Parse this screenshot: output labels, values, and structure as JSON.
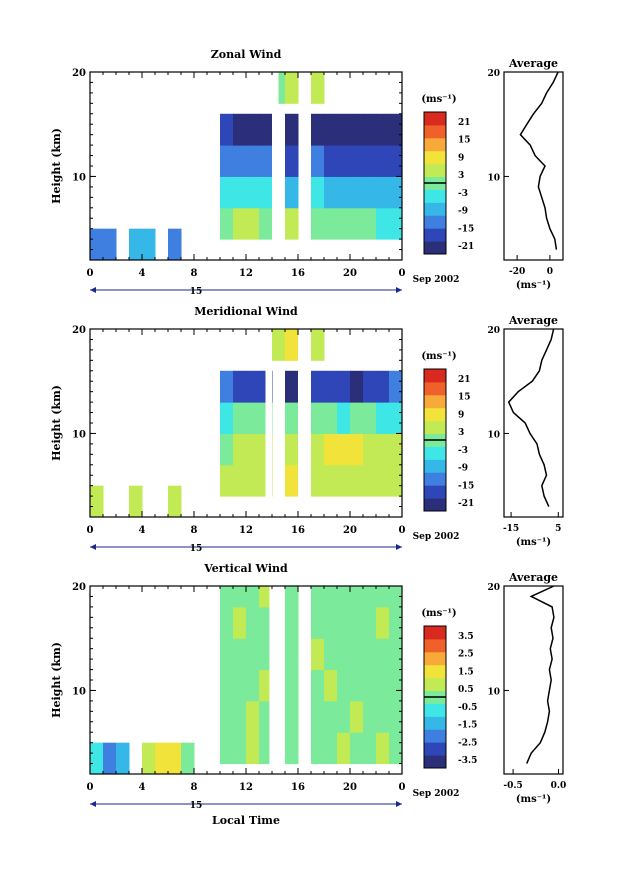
{
  "figure": {
    "date_label": "Sep 2002",
    "day_label": "15",
    "xlabel": "Local Time",
    "colorbar_unit": "(ms⁻¹)",
    "average_title": "Average",
    "average_unit": "(ms⁻¹)"
  },
  "chart_data": [
    {
      "type": "heatmap",
      "title": "Zonal Wind",
      "ylabel": "Height (km)",
      "xlabel": "",
      "x_ticks": [
        "0",
        "4",
        "8",
        "12",
        "16",
        "20",
        "0"
      ],
      "y_ticks": [
        "20",
        "10"
      ],
      "ylim": [
        2,
        20
      ],
      "xlim": [
        0,
        24
      ],
      "colorbar": {
        "ticks": [
          "21",
          "15",
          "9",
          "3",
          "-3",
          "-9",
          "-15",
          "-21"
        ],
        "range": [
          -24,
          24
        ]
      },
      "data_gaps_hours": [
        [
          14.0,
          14.5
        ],
        [
          16.5,
          17.0
        ]
      ],
      "profile": {
        "ticks": [
          "-20",
          "0"
        ],
        "xlim": [
          -28,
          8
        ],
        "height": [
          3,
          4,
          5,
          6,
          7,
          8,
          9,
          10,
          11,
          12,
          13,
          14,
          15,
          16,
          17,
          18,
          19,
          20
        ],
        "value": [
          4,
          3,
          0,
          -2,
          -3,
          -5,
          -7,
          -6,
          -3,
          -9,
          -12,
          -18,
          -14,
          -10,
          -5,
          -2,
          2,
          5
        ]
      },
      "cells": [
        [
          0,
          2,
          -12
        ],
        [
          1,
          2,
          -15
        ],
        [
          3,
          2,
          -10
        ],
        [
          4,
          2,
          -8
        ],
        [
          6,
          2,
          -14
        ],
        [
          10,
          4,
          2
        ],
        [
          11,
          4,
          3
        ],
        [
          12,
          4,
          4
        ],
        [
          13,
          4,
          2
        ],
        [
          15,
          4,
          3
        ],
        [
          17,
          4,
          1
        ],
        [
          18,
          4,
          0
        ],
        [
          19,
          4,
          -1
        ],
        [
          20,
          4,
          0
        ],
        [
          21,
          4,
          -2
        ],
        [
          22,
          4,
          -3
        ],
        [
          23,
          4,
          -4
        ],
        [
          10,
          7,
          -3
        ],
        [
          11,
          7,
          -4
        ],
        [
          12,
          7,
          -6
        ],
        [
          13,
          7,
          -5
        ],
        [
          15,
          7,
          -7
        ],
        [
          17,
          7,
          -6
        ],
        [
          18,
          7,
          -8
        ],
        [
          19,
          7,
          -9
        ],
        [
          20,
          7,
          -8
        ],
        [
          21,
          7,
          -7
        ],
        [
          22,
          7,
          -9
        ],
        [
          23,
          7,
          -10
        ],
        [
          10,
          10,
          -11
        ],
        [
          11,
          10,
          -13
        ],
        [
          12,
          10,
          -15
        ],
        [
          13,
          10,
          -14
        ],
        [
          15,
          10,
          -16
        ],
        [
          17,
          10,
          -15
        ],
        [
          18,
          10,
          -17
        ],
        [
          19,
          10,
          -18
        ],
        [
          20,
          10,
          -17
        ],
        [
          21,
          10,
          -16
        ],
        [
          22,
          10,
          -18
        ],
        [
          23,
          10,
          -19
        ],
        [
          10,
          13,
          -18
        ],
        [
          11,
          13,
          -20
        ],
        [
          12,
          13,
          -22
        ],
        [
          13,
          13,
          -21
        ],
        [
          15,
          13,
          -23
        ],
        [
          17,
          13,
          -22
        ],
        [
          18,
          13,
          -21
        ],
        [
          19,
          13,
          -23
        ],
        [
          20,
          13,
          -22
        ],
        [
          21,
          13,
          -24
        ],
        [
          22,
          13,
          -23
        ],
        [
          23,
          13,
          -20
        ],
        [
          14,
          17,
          2
        ],
        [
          15,
          17,
          4
        ],
        [
          17,
          17,
          3
        ]
      ]
    },
    {
      "type": "heatmap",
      "title": "Meridional Wind",
      "ylabel": "Height (km)",
      "xlabel": "",
      "x_ticks": [
        "0",
        "4",
        "8",
        "12",
        "16",
        "20",
        "0"
      ],
      "y_ticks": [
        "20",
        "10"
      ],
      "ylim": [
        2,
        20
      ],
      "xlim": [
        0,
        24
      ],
      "colorbar": {
        "ticks": [
          "21",
          "15",
          "9",
          "3",
          "-3",
          "-9",
          "-15",
          "-21"
        ],
        "range": [
          -24,
          24
        ]
      },
      "data_gaps_hours": [
        [
          13.5,
          14.0
        ],
        [
          16.0,
          16.5
        ]
      ],
      "profile": {
        "ticks": [
          "-15",
          "5"
        ],
        "xlim": [
          -18,
          7
        ],
        "height": [
          3,
          4,
          5,
          6,
          7,
          8,
          9,
          10,
          11,
          12,
          13,
          14,
          15,
          16,
          17,
          18,
          19,
          20
        ],
        "value": [
          1,
          -1,
          -2,
          0,
          -1,
          -3,
          -4,
          -7,
          -9,
          -14,
          -16,
          -12,
          -6,
          -3,
          -2,
          0,
          2,
          3
        ]
      },
      "cells": [
        [
          0,
          2,
          6
        ],
        [
          3,
          2,
          5
        ],
        [
          6,
          2,
          4
        ],
        [
          10,
          4,
          4
        ],
        [
          11,
          4,
          5
        ],
        [
          12,
          4,
          6
        ],
        [
          13,
          4,
          5
        ],
        [
          15,
          4,
          7
        ],
        [
          17,
          4,
          6
        ],
        [
          18,
          4,
          4
        ],
        [
          19,
          4,
          5
        ],
        [
          20,
          4,
          6
        ],
        [
          21,
          4,
          3
        ],
        [
          22,
          4,
          4
        ],
        [
          23,
          4,
          5
        ],
        [
          10,
          7,
          2
        ],
        [
          11,
          7,
          3
        ],
        [
          12,
          7,
          5
        ],
        [
          13,
          7,
          6
        ],
        [
          15,
          7,
          4
        ],
        [
          17,
          7,
          6
        ],
        [
          18,
          7,
          8
        ],
        [
          19,
          7,
          9
        ],
        [
          20,
          7,
          7
        ],
        [
          21,
          7,
          6
        ],
        [
          22,
          7,
          5
        ],
        [
          23,
          7,
          4
        ],
        [
          10,
          10,
          -3
        ],
        [
          11,
          10,
          -1
        ],
        [
          12,
          10,
          0
        ],
        [
          13,
          10,
          2
        ],
        [
          15,
          10,
          1
        ],
        [
          17,
          10,
          0
        ],
        [
          18,
          10,
          -2
        ],
        [
          19,
          10,
          -4
        ],
        [
          20,
          10,
          -2
        ],
        [
          21,
          10,
          -1
        ],
        [
          22,
          10,
          -3
        ],
        [
          23,
          10,
          -5
        ],
        [
          10,
          13,
          -14
        ],
        [
          11,
          13,
          -16
        ],
        [
          12,
          13,
          -18
        ],
        [
          13,
          13,
          -19
        ],
        [
          15,
          13,
          -20
        ],
        [
          17,
          13,
          -18
        ],
        [
          18,
          13,
          -17
        ],
        [
          19,
          13,
          -19
        ],
        [
          20,
          13,
          -20
        ],
        [
          21,
          13,
          -18
        ],
        [
          22,
          13,
          -16
        ],
        [
          23,
          13,
          -15
        ],
        [
          14,
          17,
          6
        ],
        [
          15,
          17,
          8
        ],
        [
          17,
          17,
          5
        ]
      ]
    },
    {
      "type": "heatmap",
      "title": "Vertical Wind",
      "ylabel": "Height (km)",
      "xlabel": "Local Time",
      "x_ticks": [
        "0",
        "4",
        "8",
        "12",
        "16",
        "20",
        "0"
      ],
      "y_ticks": [
        "20",
        "10"
      ],
      "ylim": [
        2,
        20
      ],
      "xlim": [
        0,
        24
      ],
      "colorbar": {
        "ticks": [
          "3.5",
          "2.5",
          "1.5",
          "0.5",
          "-0.5",
          "-1.5",
          "-2.5",
          "-3.5"
        ],
        "range": [
          -4,
          4
        ]
      },
      "data_gaps_hours": [
        [
          13.8,
          14.3
        ],
        [
          16.3,
          16.8
        ]
      ],
      "profile": {
        "ticks": [
          "-0.5",
          "0.0"
        ],
        "xlim": [
          -0.6,
          0.05
        ],
        "height": [
          3,
          4,
          5,
          6,
          7,
          8,
          9,
          10,
          11,
          12,
          13,
          14,
          15,
          16,
          17,
          18,
          19,
          20
        ],
        "value": [
          -0.35,
          -0.3,
          -0.2,
          -0.15,
          -0.12,
          -0.1,
          -0.12,
          -0.1,
          -0.08,
          -0.1,
          -0.07,
          -0.09,
          -0.06,
          -0.08,
          -0.05,
          -0.07,
          -0.3,
          -0.05
        ]
      },
      "cells": [
        [
          0,
          2,
          -1
        ],
        [
          1,
          2,
          -2
        ],
        [
          2,
          2,
          -1.5
        ],
        [
          4,
          2,
          0.8
        ],
        [
          5,
          2,
          1.5
        ],
        [
          6,
          2,
          1.2
        ],
        [
          7,
          2,
          0.3
        ],
        [
          10,
          3,
          0.2
        ],
        [
          11,
          3,
          -0.2
        ],
        [
          12,
          3,
          0.4
        ],
        [
          13,
          3,
          -0.1
        ],
        [
          15,
          3,
          0.3
        ],
        [
          17,
          3,
          -0.3
        ],
        [
          18,
          3,
          0.1
        ],
        [
          19,
          3,
          0.5
        ],
        [
          20,
          3,
          -0.2
        ],
        [
          21,
          3,
          0.2
        ],
        [
          22,
          3,
          0.4
        ],
        [
          23,
          3,
          -0.1
        ],
        [
          10,
          6,
          -0.3
        ],
        [
          11,
          6,
          0.1
        ],
        [
          12,
          6,
          0.5
        ],
        [
          13,
          6,
          0.2
        ],
        [
          15,
          6,
          -0.2
        ],
        [
          17,
          6,
          0.3
        ],
        [
          18,
          6,
          0.2
        ],
        [
          19,
          6,
          -0.1
        ],
        [
          20,
          6,
          0.4
        ],
        [
          21,
          6,
          0.1
        ],
        [
          22,
          6,
          -0.3
        ],
        [
          23,
          6,
          0.2
        ],
        [
          10,
          9,
          0.3
        ],
        [
          11,
          9,
          0.2
        ],
        [
          12,
          9,
          -0.1
        ],
        [
          13,
          9,
          0.4
        ],
        [
          15,
          9,
          0.1
        ],
        [
          17,
          9,
          -0.2
        ],
        [
          18,
          9,
          0.5
        ],
        [
          19,
          9,
          0.2
        ],
        [
          20,
          9,
          0.1
        ],
        [
          21,
          9,
          -0.1
        ],
        [
          22,
          9,
          0.3
        ],
        [
          23,
          9,
          0.2
        ],
        [
          10,
          12,
          0.1
        ],
        [
          11,
          12,
          -0.2
        ],
        [
          12,
          12,
          0.3
        ],
        [
          13,
          12,
          0.1
        ],
        [
          15,
          12,
          0.2
        ],
        [
          17,
          12,
          0.4
        ],
        [
          18,
          12,
          -0.1
        ],
        [
          19,
          12,
          0.2
        ],
        [
          20,
          12,
          0.3
        ],
        [
          21,
          12,
          0.1
        ],
        [
          22,
          12,
          0.2
        ],
        [
          23,
          12,
          -0.2
        ],
        [
          10,
          15,
          0.2
        ],
        [
          11,
          15,
          0.4
        ],
        [
          12,
          15,
          0.1
        ],
        [
          13,
          15,
          -0.2
        ],
        [
          15,
          15,
          0.3
        ],
        [
          17,
          15,
          0.2
        ],
        [
          18,
          15,
          0.1
        ],
        [
          19,
          15,
          0.3
        ],
        [
          20,
          15,
          -0.1
        ],
        [
          21,
          15,
          0.2
        ],
        [
          22,
          15,
          0.4
        ],
        [
          23,
          15,
          0.1
        ],
        [
          10,
          18,
          0.3
        ],
        [
          11,
          18,
          0.1
        ],
        [
          12,
          18,
          0.2
        ],
        [
          13,
          18,
          0.4
        ],
        [
          15,
          18,
          0.1
        ],
        [
          17,
          18,
          0.3
        ],
        [
          18,
          18,
          0.2
        ],
        [
          19,
          18,
          0.1
        ],
        [
          20,
          18,
          0.3
        ],
        [
          21,
          18,
          0.2
        ],
        [
          22,
          18,
          0.1
        ],
        [
          23,
          18,
          0.3
        ]
      ]
    }
  ]
}
